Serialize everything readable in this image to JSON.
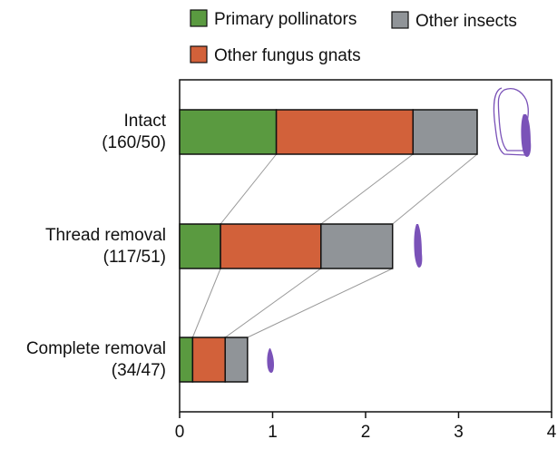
{
  "chart_data": {
    "type": "bar",
    "orientation": "horizontal",
    "stacked": true,
    "title": "",
    "xlabel": "",
    "ylabel": "",
    "xlim": [
      0,
      4
    ],
    "x_ticks": [
      "0",
      "1",
      "2",
      "3",
      "4"
    ],
    "grid": false,
    "legend_placement": "top",
    "categories": [
      {
        "name": "Intact",
        "counts": "(160/50)"
      },
      {
        "name": "Thread removal",
        "counts": "(117/51)"
      },
      {
        "name": "Complete removal",
        "counts": "(34/47)"
      }
    ],
    "series": [
      {
        "name": "Primary pollinators",
        "color": "#5a9a40",
        "values": [
          1.04,
          0.44,
          0.14
        ]
      },
      {
        "name": "Other fungus gnats",
        "color": "#d2613a",
        "values": [
          1.47,
          1.08,
          0.35
        ]
      },
      {
        "name": "Other insects",
        "color": "#909498",
        "values": [
          0.69,
          0.77,
          0.24
        ]
      }
    ],
    "connector_lines": true,
    "category_icons": [
      "flower-thread-intact-icon",
      "flower-thread-partial-icon",
      "flower-thread-removed-icon"
    ],
    "icon_color": "#7a52b8"
  }
}
